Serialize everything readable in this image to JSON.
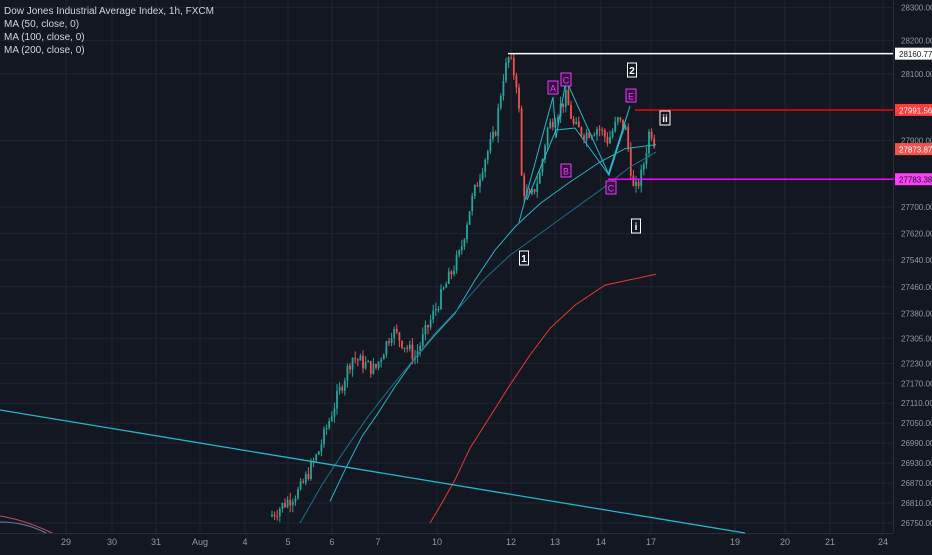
{
  "legend": {
    "symbol": "Dow Jones Industrial Average Index, 1h, FXCM",
    "ma50": "MA (50, close, 0)",
    "ma100": "MA (100, close, 0)",
    "ma200": "MA (200, close, 0)"
  },
  "colors": {
    "background": "#131722",
    "grid": "#1f2433",
    "axis_text": "#9598a1",
    "up_candle": "#26a69a",
    "down_candle": "#ef5350",
    "ma50": "#2bb3c0",
    "ma100": "#1b6f87",
    "ma200": "#e53935",
    "trendline": "#29b6c6",
    "pattern": "#e040fb",
    "white_line": "#ffffff",
    "red_line": "#ff0000",
    "magenta_line": "#ff00ff"
  },
  "chart_data": {
    "type": "candlestick",
    "title": "Dow Jones Industrial Average Index, 1h, FXCM",
    "ylim": [
      26720,
      28310
    ],
    "y_ticks": [
      28300,
      28200,
      28100,
      27900,
      27700,
      27620,
      27540,
      27460,
      27380,
      27305,
      27230,
      27170,
      27110,
      27050,
      26990,
      26930,
      26870,
      26810,
      26750
    ],
    "x_ticks": [
      "29",
      "30",
      "31",
      "Aug",
      "4",
      "5",
      "6",
      "7",
      "10",
      "12",
      "13",
      "14",
      "17",
      "19",
      "20",
      "21",
      "24"
    ],
    "grid": true,
    "series": [
      {
        "name": "MA (50, close, 0)",
        "points": [
          [
            26880,
            26750
          ],
          [
            26980,
            26840
          ],
          [
            27060,
            26960
          ],
          [
            27100,
            27060
          ],
          [
            27140,
            27180
          ],
          [
            27200,
            27290
          ],
          [
            27250,
            27380
          ],
          [
            27300,
            27460
          ],
          [
            27400,
            27560
          ],
          [
            27490,
            27650
          ],
          [
            27560,
            27720
          ],
          [
            27620,
            27800
          ],
          [
            27700,
            27850
          ],
          [
            27800,
            27870
          ],
          [
            27870,
            27880
          ],
          [
            27910,
            27865
          ]
        ]
      },
      {
        "name": "MA (100, close, 0)",
        "points": [
          [
            26750,
            26750
          ],
          [
            26900,
            26830
          ],
          [
            27000,
            26940
          ],
          [
            27090,
            27050
          ],
          [
            27150,
            27160
          ],
          [
            27210,
            27260
          ],
          [
            27280,
            27360
          ],
          [
            27360,
            27440
          ],
          [
            27450,
            27520
          ],
          [
            27530,
            27580
          ],
          [
            27610,
            27630
          ],
          [
            27680,
            27690
          ],
          [
            27750,
            27750
          ],
          [
            27820,
            27820
          ],
          [
            27860,
            27870
          ]
        ]
      },
      {
        "name": "MA (200, close, 0)",
        "points": [
          [
            26750,
            26750
          ],
          [
            26820,
            26780
          ],
          [
            26900,
            26860
          ],
          [
            26990,
            26960
          ],
          [
            27090,
            27050
          ],
          [
            27180,
            27150
          ],
          [
            27260,
            27250
          ],
          [
            27330,
            27340
          ],
          [
            27390,
            27420
          ],
          [
            27440,
            27490
          ],
          [
            27470,
            27525
          ]
        ]
      }
    ],
    "horizontal_levels": [
      {
        "label": "28160.77",
        "value": 28160.77,
        "color": "#ffffff"
      },
      {
        "label": "27991.56",
        "value": 27991.56,
        "color": "#ff0000"
      },
      {
        "label": "27873.87",
        "value": 27873.87,
        "color": "#ef5350"
      },
      {
        "label": "27783.38",
        "value": 27783.38,
        "color": "#ff00ff"
      }
    ],
    "wave_labels": [
      "1",
      "2",
      "i",
      "ii"
    ],
    "pattern_labels": [
      "A",
      "B",
      "C",
      "C",
      "E"
    ]
  }
}
